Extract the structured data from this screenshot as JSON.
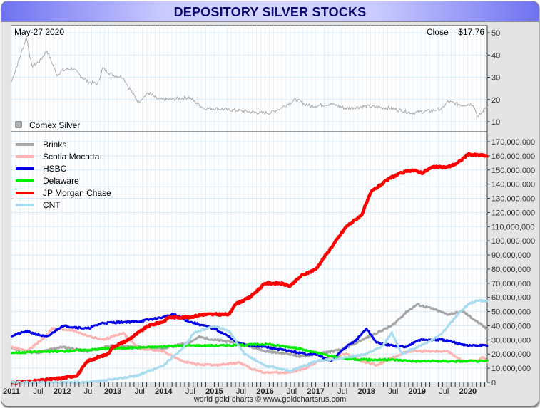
{
  "title": "DEPOSITORY SILVER STOCKS",
  "footer": "world gold charts © www.goldchartsrus.com",
  "chart_data": [
    {
      "type": "line",
      "panel": "top",
      "date_label": "May-27  2020",
      "close_label": "Close = $17.76",
      "legend": [
        {
          "name": "Comex Silver",
          "color": "#b0b0b0"
        }
      ],
      "ylim": [
        5,
        53
      ],
      "yticks": [
        10,
        20,
        30,
        40,
        50
      ],
      "series": [
        {
          "name": "Comex Silver",
          "color": "#aaaaaa",
          "x": [
            2011.0,
            2011.15,
            2011.3,
            2011.4,
            2011.55,
            2011.7,
            2011.9,
            2012.0,
            2012.2,
            2012.5,
            2012.7,
            2012.8,
            2013.0,
            2013.2,
            2013.3,
            2013.5,
            2013.7,
            2013.9,
            2014.1,
            2014.5,
            2014.8,
            2015.0,
            2015.5,
            2015.9,
            2016.1,
            2016.3,
            2016.6,
            2016.9,
            2017.3,
            2017.6,
            2018.0,
            2018.5,
            2018.9,
            2019.3,
            2019.5,
            2019.6,
            2019.9,
            2020.1,
            2020.2,
            2020.3,
            2020.4
          ],
          "y": [
            28,
            38,
            48,
            35,
            37,
            42,
            31,
            33,
            34,
            28,
            27,
            34,
            31,
            30,
            26,
            19,
            23,
            20,
            20,
            21,
            16,
            16,
            15,
            14,
            14,
            16,
            20,
            17,
            18,
            16,
            17,
            16,
            14,
            15,
            16,
            19,
            17.5,
            18,
            12,
            15,
            17.76
          ]
        }
      ]
    },
    {
      "type": "line",
      "panel": "bottom",
      "xlim": [
        2011.0,
        2020.4
      ],
      "ylim": [
        0,
        170000000
      ],
      "yticks": [
        0,
        10000000,
        20000000,
        30000000,
        40000000,
        50000000,
        60000000,
        70000000,
        80000000,
        90000000,
        100000000,
        110000000,
        120000000,
        130000000,
        140000000,
        150000000,
        160000000,
        170000000
      ],
      "ytick_labels": [
        "0",
        "10,000,000",
        "20,000,000",
        "30,000,000",
        "40,000,000",
        "50,000,000",
        "60,000,000",
        "70,000,000",
        "80,000,000",
        "90,000,000",
        "100,000,000",
        "110,000,000",
        "120,000,000",
        "130,000,000",
        "140,000,000",
        "150,000,000",
        "160,000,000",
        "170,000,000"
      ],
      "xtick_labels": [
        {
          "t": 2011.0,
          "label": "2011",
          "major": true
        },
        {
          "t": 2011.5,
          "label": "Jul",
          "major": false
        },
        {
          "t": 2012.0,
          "label": "2012",
          "major": true
        },
        {
          "t": 2012.5,
          "label": "Jul",
          "major": false
        },
        {
          "t": 2013.0,
          "label": "2013",
          "major": true
        },
        {
          "t": 2013.5,
          "label": "Jul",
          "major": false
        },
        {
          "t": 2014.0,
          "label": "2014",
          "major": true
        },
        {
          "t": 2014.5,
          "label": "Jul",
          "major": false
        },
        {
          "t": 2015.0,
          "label": "2015",
          "major": true
        },
        {
          "t": 2015.5,
          "label": "Jul",
          "major": false
        },
        {
          "t": 2016.0,
          "label": "2016",
          "major": true
        },
        {
          "t": 2016.5,
          "label": "Jul",
          "major": false
        },
        {
          "t": 2017.0,
          "label": "2017",
          "major": true
        },
        {
          "t": 2017.5,
          "label": "Jul",
          "major": false
        },
        {
          "t": 2018.0,
          "label": "2018",
          "major": true
        },
        {
          "t": 2018.5,
          "label": "Jul",
          "major": false
        },
        {
          "t": 2019.0,
          "label": "2019",
          "major": true
        },
        {
          "t": 2019.5,
          "label": "Jul",
          "major": false
        },
        {
          "t": 2020.0,
          "label": "2020",
          "major": true
        }
      ],
      "legend_position": "top-left",
      "series": [
        {
          "name": "Brinks",
          "color": "#a6a6a6",
          "width": 3,
          "x": [
            2011,
            2011.5,
            2012,
            2012.5,
            2013,
            2013.5,
            2014,
            2014.5,
            2014.7,
            2015,
            2015.5,
            2016,
            2016.5,
            2016.7,
            2017,
            2017.5,
            2017.8,
            2018.2,
            2018.5,
            2018.8,
            2019.0,
            2019.3,
            2019.6,
            2019.9,
            2020.1,
            2020.4
          ],
          "y": [
            24,
            21,
            25,
            22,
            26,
            25,
            24,
            28,
            32,
            30,
            28,
            22,
            20,
            18,
            20,
            23,
            28,
            35,
            40,
            50,
            55,
            52,
            48,
            50,
            45,
            37
          ]
        },
        {
          "name": "Scotia Mocatta",
          "color": "#ffb4b4",
          "width": 3,
          "x": [
            2011,
            2011.3,
            2011.6,
            2011.8,
            2012.2,
            2012.5,
            2012.8,
            2013.2,
            2013.5,
            2014,
            2014.3,
            2014.6,
            2015,
            2015.5,
            2015.7,
            2016,
            2016.5,
            2016.8,
            2017,
            2017.3,
            2017.6,
            2017.9,
            2018.2,
            2018.5,
            2018.8,
            2019.2,
            2019.6,
            2019.9,
            2020.2,
            2020.3,
            2020.4
          ],
          "y": [
            25,
            22,
            30,
            38,
            37,
            33,
            30,
            35,
            24,
            22,
            16,
            13,
            12,
            14,
            10,
            7,
            7,
            10,
            14,
            18,
            20,
            15,
            12,
            17,
            22,
            22,
            22,
            15,
            15,
            18,
            14
          ]
        },
        {
          "name": "HSBC",
          "color": "#0000ee",
          "width": 3,
          "x": [
            2011,
            2011.3,
            2011.7,
            2012,
            2012.5,
            2012.8,
            2013.5,
            2014,
            2014.2,
            2014.5,
            2014.8,
            2015,
            2015.3,
            2015.5,
            2016,
            2016.5,
            2016.8,
            2017,
            2017.3,
            2017.6,
            2017.8,
            2018,
            2018.2,
            2018.5,
            2018.8,
            2019,
            2019.5,
            2020,
            2020.4
          ],
          "y": [
            33,
            36,
            32,
            40,
            38,
            42,
            43,
            46,
            48,
            43,
            40,
            38,
            32,
            27,
            25,
            22,
            20,
            20,
            15,
            25,
            30,
            38,
            28,
            26,
            25,
            30,
            30,
            26,
            26
          ]
        },
        {
          "name": "Delaware",
          "color": "#00ee00",
          "width": 3,
          "x": [
            2011,
            2012,
            2013,
            2013.8,
            2014.5,
            2015.3,
            2016,
            2016.5,
            2017,
            2017.5,
            2018,
            2018.5,
            2019,
            2020,
            2020.4
          ],
          "y": [
            21,
            22,
            24,
            25,
            26,
            26,
            27,
            25,
            21,
            17,
            16,
            16,
            15,
            15,
            15
          ]
        },
        {
          "name": "JP Morgan Chase",
          "color": "#ff0000",
          "width": 4.5,
          "x": [
            2011,
            2011.5,
            2012,
            2012.3,
            2012.5,
            2012.9,
            2013,
            2013.3,
            2013.5,
            2013.7,
            2014,
            2014.1,
            2014.5,
            2014.8,
            2015.3,
            2015.4,
            2015.7,
            2016,
            2016.3,
            2016.5,
            2016.7,
            2017,
            2017.2,
            2017.4,
            2017.6,
            2017.9,
            2018.1,
            2018.3,
            2018.5,
            2018.7,
            2018.9,
            2019.1,
            2019.3,
            2019.6,
            2019.8,
            2020,
            2020.4
          ],
          "y": [
            0,
            1,
            3,
            5,
            15,
            20,
            25,
            30,
            35,
            40,
            43,
            46,
            46,
            48,
            48,
            55,
            60,
            70,
            70,
            68,
            75,
            80,
            90,
            100,
            110,
            118,
            135,
            140,
            145,
            148,
            150,
            148,
            152,
            152,
            155,
            161,
            160
          ]
        },
        {
          "name": "CNT",
          "color": "#aadcf0",
          "width": 3,
          "x": [
            2011,
            2012.5,
            2013,
            2013.5,
            2014,
            2014.4,
            2014.6,
            2015,
            2015.3,
            2015.6,
            2016,
            2016.5,
            2016.8,
            2017,
            2017.5,
            2018,
            2018.3,
            2018.5,
            2018.7,
            2019,
            2019.3,
            2019.5,
            2019.8,
            2020,
            2020.2,
            2020.4
          ],
          "y": [
            0,
            0,
            2,
            5,
            12,
            25,
            35,
            40,
            36,
            20,
            12,
            8,
            12,
            15,
            17,
            20,
            25,
            35,
            20,
            25,
            30,
            35,
            48,
            55,
            58,
            57
          ]
        }
      ],
      "y_units": "millions of ounces (values x 1,000,000)"
    }
  ]
}
